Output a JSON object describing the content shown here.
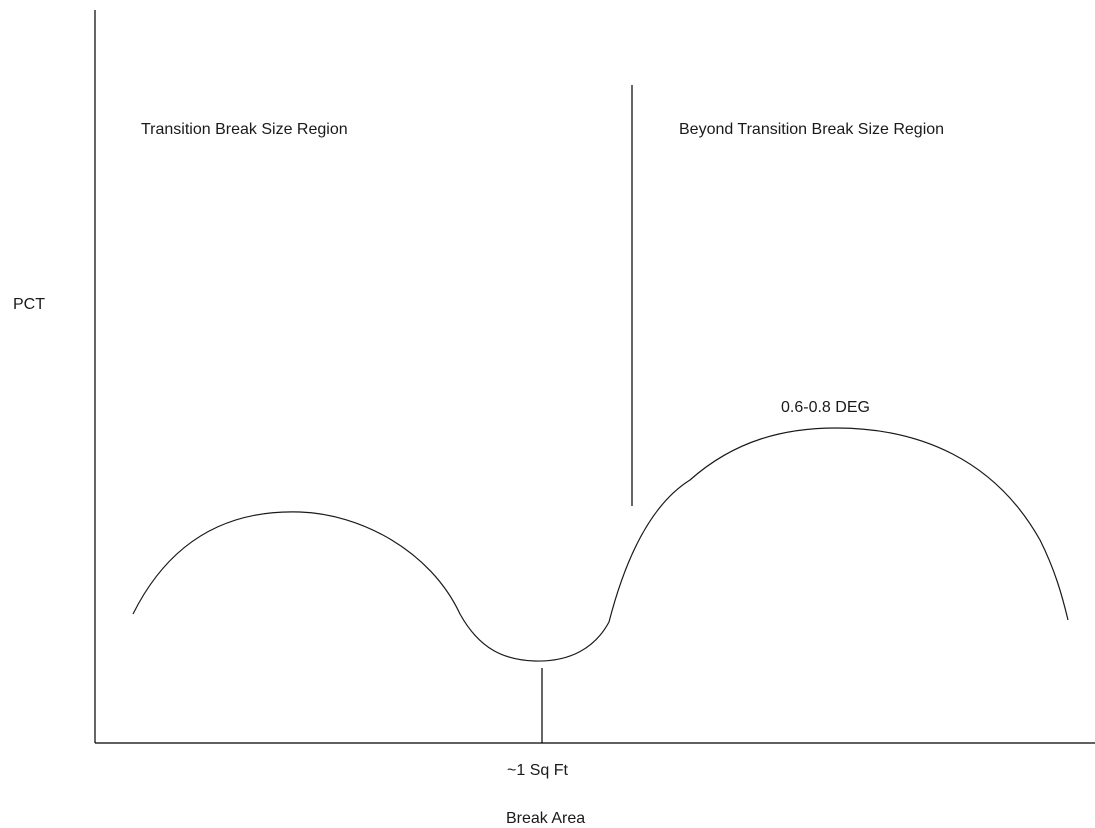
{
  "diagram": {
    "y_axis_label": "PCT",
    "x_axis_label": "Break Area",
    "marker_label": "~1 Sq Ft",
    "left_region_label": "Transition Break Size Region",
    "right_region_label": "Beyond Transition Break Size Region",
    "peak_annotation": "0.6-0.8 DEG",
    "curve_color": "#1a1a1a"
  }
}
